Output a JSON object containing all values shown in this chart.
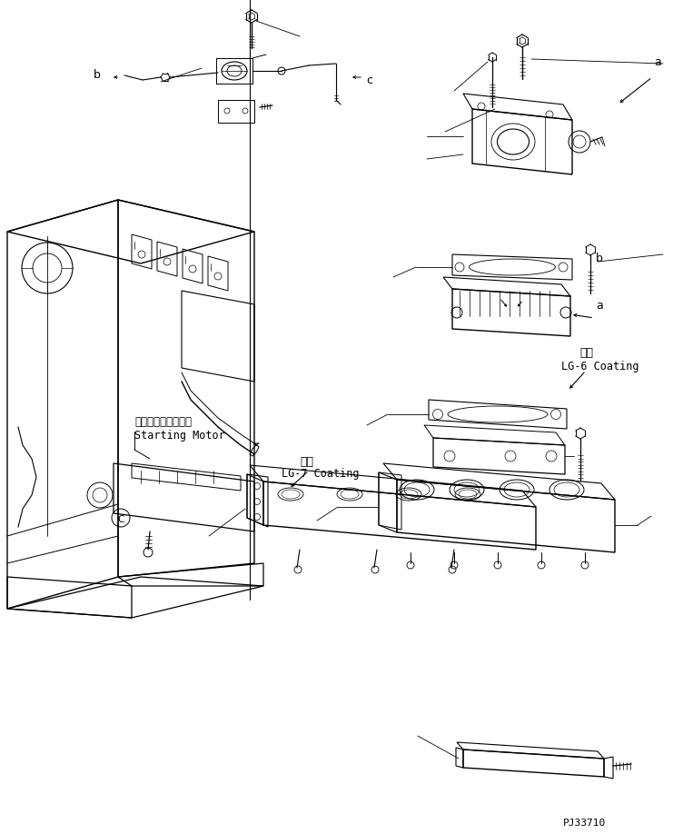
{
  "bg_color": "#ffffff",
  "fig_width": 7.52,
  "fig_height": 9.18,
  "dpi": 100,
  "watermark": "PJ33710",
  "labels": {
    "a1": "a",
    "b1": "b",
    "c1": "c",
    "starting_motor_jp": "スターティングモタ",
    "starting_motor_en": "Starting Motor",
    "coating_lg7_jp": "塗布",
    "coating_lg7_en": "LG-7 Coating",
    "coating_lg6_jp": "塗布",
    "coating_lg6_en": "LG-6 Coating"
  }
}
